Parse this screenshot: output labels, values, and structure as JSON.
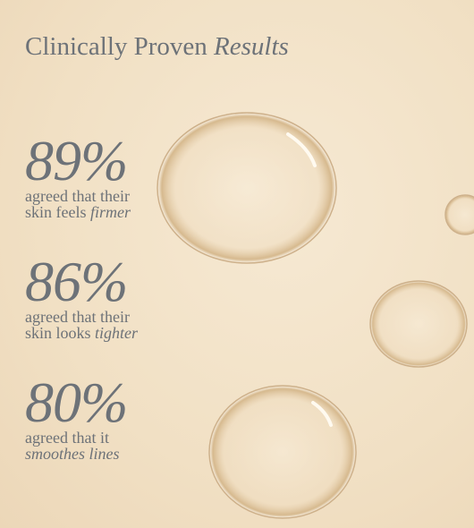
{
  "header": {
    "title": "Clinically Proven",
    "title_emphasis": "Results"
  },
  "stats": [
    {
      "figure": "89%",
      "line1": "agreed that their",
      "line2": "skin feels",
      "emphasis": "firmer"
    },
    {
      "figure": "86%",
      "line1": "agreed that their",
      "line2": "skin looks",
      "emphasis": "tighter"
    },
    {
      "figure": "80%",
      "line1": "agreed that it",
      "line2": "",
      "emphasis": "smoothes lines"
    }
  ]
}
